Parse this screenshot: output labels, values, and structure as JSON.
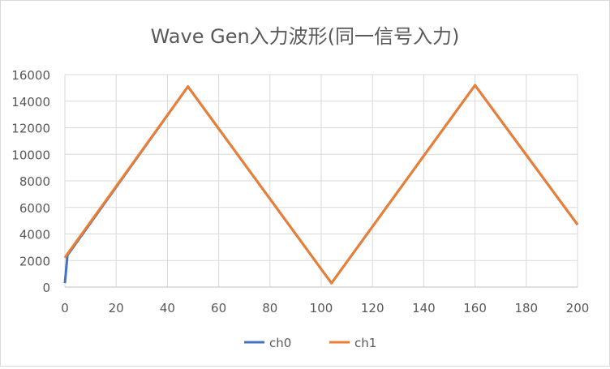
{
  "chart_data": {
    "type": "line",
    "title": "Wave Gen入力波形(同一信号入力)",
    "xlabel": "",
    "ylabel": "",
    "xlim": [
      0,
      200
    ],
    "ylim": [
      0,
      16000
    ],
    "xticks": [
      0,
      20,
      40,
      60,
      80,
      100,
      120,
      140,
      160,
      180,
      200
    ],
    "yticks": [
      0,
      2000,
      4000,
      6000,
      8000,
      10000,
      12000,
      14000,
      16000
    ],
    "grid": true,
    "legend_position": "bottom",
    "series": [
      {
        "name": "ch0",
        "color": "#4472c4",
        "x": [
          0,
          1,
          48,
          104,
          160,
          200
        ],
        "y": [
          300,
          2400,
          15100,
          300,
          15200,
          4700
        ]
      },
      {
        "name": "ch1",
        "color": "#ed7d31",
        "x": [
          0,
          1,
          48,
          104,
          160,
          200
        ],
        "y": [
          2200,
          2500,
          15100,
          300,
          15200,
          4700
        ]
      }
    ]
  }
}
